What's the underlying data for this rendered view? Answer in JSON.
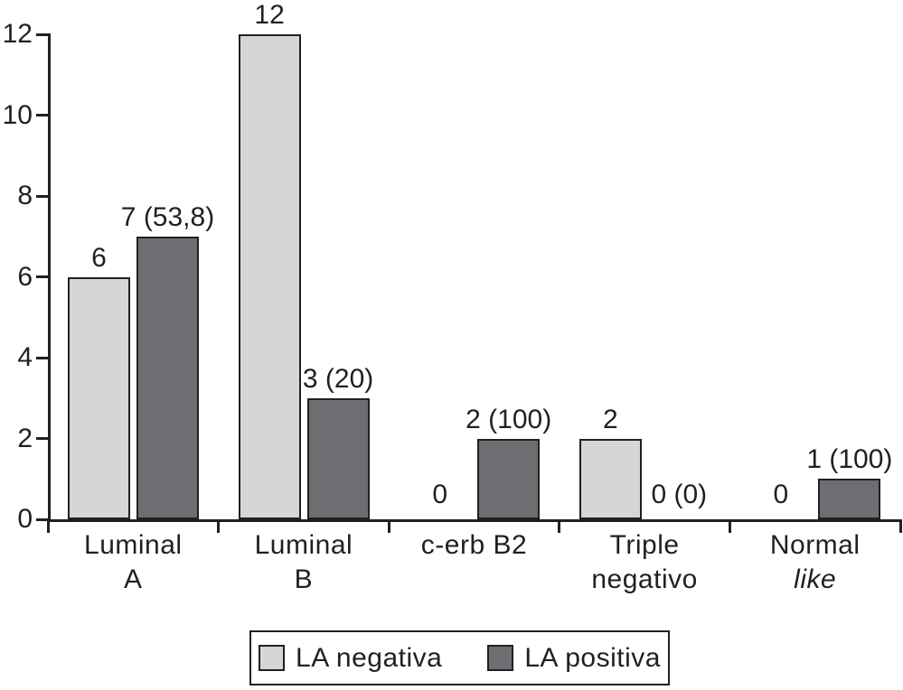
{
  "figure": {
    "background": "#ffffff",
    "axis_color": "#231f20",
    "text_color": "#231f20"
  },
  "legend": {
    "items": [
      {
        "label": "LA negativa",
        "swatch_color": "#d5d6d7"
      },
      {
        "label": "LA positiva",
        "swatch_color": "#6d6e71"
      }
    ]
  },
  "chart_data": {
    "type": "bar",
    "title": "",
    "xlabel": "",
    "ylabel": "",
    "ylim": [
      0,
      12
    ],
    "yticks": [
      0,
      2,
      4,
      6,
      8,
      10,
      12
    ],
    "grid": false,
    "legend_position": "bottom",
    "categories": [
      "Luminal A",
      "Luminal B",
      "c-erb B2",
      "Triple negativo",
      "Normal like"
    ],
    "category_label_lines": [
      {
        "line1": "Luminal",
        "line2": "A",
        "line2_italic": false
      },
      {
        "line1": "Luminal",
        "line2": "B",
        "line2_italic": false
      },
      {
        "line1": "c-erb B2",
        "line2": "",
        "line2_italic": false
      },
      {
        "line1": "Triple",
        "line2": "negativo",
        "line2_italic": false
      },
      {
        "line1": "Normal",
        "line2": "like",
        "line2_italic": true
      }
    ],
    "series": [
      {
        "name": "LA negativa",
        "color": "#d5d6d7",
        "values": [
          6,
          12,
          0,
          2,
          0
        ],
        "bar_labels": [
          "6",
          "12",
          "0",
          "2",
          "0"
        ]
      },
      {
        "name": "LA positiva",
        "color": "#6d6e71",
        "values": [
          7,
          3,
          2,
          0,
          1
        ],
        "bar_labels": [
          "7 (53,8)",
          "3 (20)",
          "2 (100)",
          "0 (0)",
          "1 (100)"
        ]
      }
    ]
  }
}
